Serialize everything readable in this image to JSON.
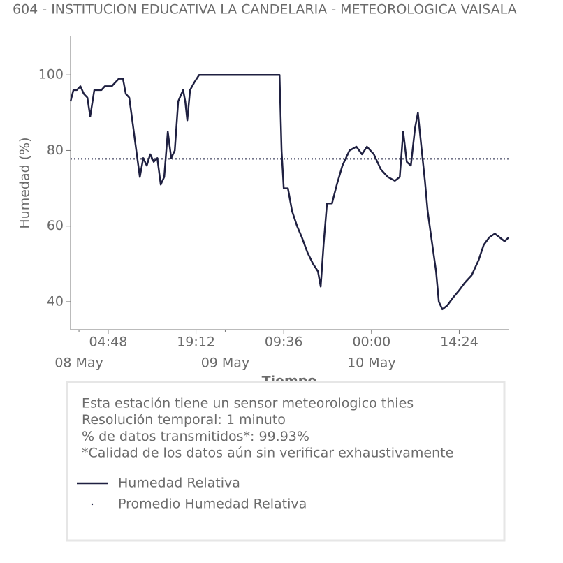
{
  "chart_data": {
    "type": "line",
    "title": "604 - INSTITUCION EDUCATIVA LA CANDELARIA - METEOROLOGICA VAISALA",
    "ylabel": "Humedad (%)",
    "xlabel": "Tiempo",
    "ylim": [
      32.6,
      110.2
    ],
    "yticks": [
      40,
      60,
      80,
      100
    ],
    "xlim": [
      "07 May 22:37",
      "10 May 22:36"
    ],
    "xticks": [
      {
        "value": "08 May 04:48",
        "label": "04:48"
      },
      {
        "value": "08 May 19:12",
        "label": "19:12"
      },
      {
        "value": "09 May 09:36",
        "label": "09:36"
      },
      {
        "value": "10 May 00:00",
        "label": "00:00"
      },
      {
        "value": "10 May 14:24",
        "label": "14:24"
      }
    ],
    "xticks_minor": [
      {
        "value": "08 May 00:00",
        "label": "08 May"
      },
      {
        "value": "09 May 00:00",
        "label": "09 May"
      },
      {
        "value": "10 May 00:00",
        "label": "10 May"
      }
    ],
    "x": [
      "07 May 22:37",
      "07 May 23:05",
      "07 May 23:39",
      "08 May 00:14",
      "08 May 00:48",
      "08 May 01:23",
      "08 May 01:50",
      "08 May 02:31",
      "08 May 03:40",
      "08 May 04:15",
      "08 May 05:23",
      "08 May 06:32",
      "08 May 07:13",
      "08 May 07:41",
      "08 May 08:15",
      "08 May 08:50",
      "08 May 09:24",
      "08 May 09:59",
      "08 May 10:33",
      "08 May 11:07",
      "08 May 11:42",
      "08 May 12:16",
      "08 May 12:51",
      "08 May 13:25",
      "08 May 13:59",
      "08 May 14:34",
      "08 May 15:08",
      "08 May 15:43",
      "08 May 16:17",
      "08 May 17:05",
      "08 May 17:26",
      "08 May 17:46",
      "08 May 18:14",
      "08 May 18:55",
      "08 May 19:43",
      "08 May 21:27",
      "09 May 08:55",
      "09 May 09:15",
      "09 May 09:36",
      "09 May 10:17",
      "09 May 10:58",
      "09 May 11:47",
      "09 May 12:35",
      "09 May 13:30",
      "09 May 14:25",
      "09 May 15:13",
      "09 May 15:40",
      "09 May 16:08",
      "09 May 16:42",
      "09 May 17:31",
      "09 May 18:19",
      "09 May 19:14",
      "09 May 20:23",
      "09 May 21:31",
      "09 May 22:26",
      "09 May 23:15",
      "10 May 00:23",
      "10 May 01:32",
      "10 May 02:41",
      "10 May 03:50",
      "10 May 04:38",
      "10 May 05:12",
      "10 May 05:47",
      "10 May 06:28",
      "10 May 07:09",
      "10 May 07:37",
      "10 May 08:11",
      "10 May 08:46",
      "10 May 09:13",
      "10 May 09:54",
      "10 May 10:36",
      "10 May 11:03",
      "10 May 11:38",
      "10 May 12:26",
      "10 May 13:21",
      "10 May 14:23",
      "10 May 15:18",
      "10 May 16:26",
      "10 May 17:35",
      "10 May 18:24",
      "10 May 19:19",
      "10 May 20:14",
      "10 May 21:02",
      "10 May 21:50",
      "10 May 22:31"
    ],
    "series": [
      {
        "name": "Humedad Relativa",
        "color": "#1f2041",
        "values": [
          93,
          96,
          96,
          97,
          95,
          94,
          89,
          96,
          96,
          97,
          97,
          99,
          99,
          95,
          94,
          87,
          80,
          73,
          78,
          76,
          79,
          77,
          78,
          71,
          73,
          85,
          78,
          80,
          93,
          96,
          93,
          88,
          96,
          98,
          100,
          100,
          100,
          80,
          70,
          70,
          64,
          60,
          57,
          53,
          50,
          48,
          44,
          55,
          66,
          66,
          71,
          76,
          80,
          81,
          79,
          81,
          79,
          75,
          73,
          72,
          73,
          85,
          77,
          76,
          86,
          90,
          81,
          72,
          64,
          56,
          48,
          40,
          38,
          39,
          41,
          43,
          45,
          47,
          51,
          55,
          57,
          58,
          57,
          56,
          57
        ]
      }
    ],
    "mean": {
      "name": "Promedio Humedad Relativa",
      "color": "#1f2041",
      "value": 77.8
    },
    "notes": [
      "Esta estación tiene un sensor meteorologico thies",
      "Resolución temporal: 1 minuto",
      "% de datos transmitidos*: 99.93%",
      "*Calidad de los datos aún sin verificar exhaustivamente"
    ]
  }
}
